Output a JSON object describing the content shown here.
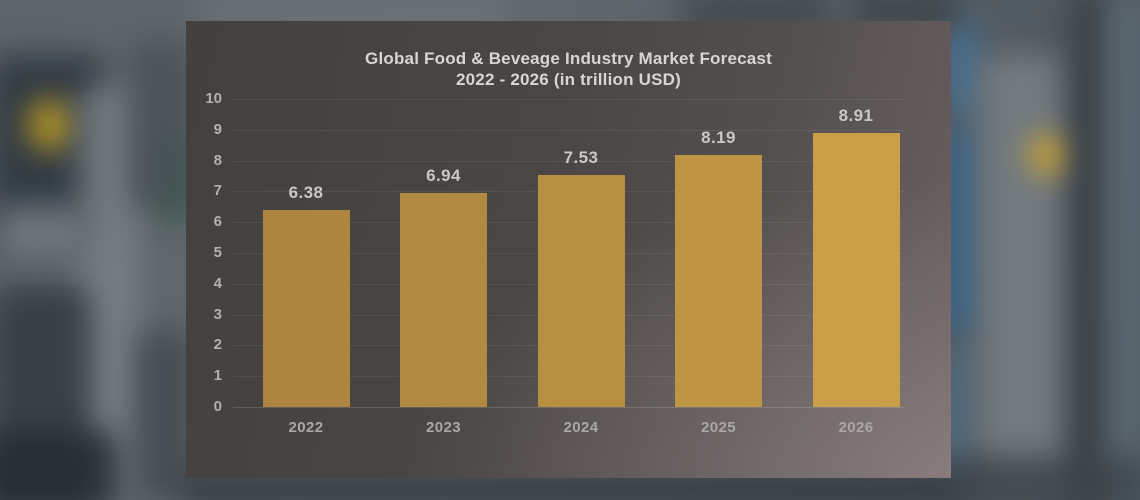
{
  "title_line1": "Global Food & Beveage Industry Market Forecast",
  "title_line2": "2022 - 2026 (in trillion USD)",
  "chart_data": {
    "type": "bar",
    "title": "Global Food & Beveage Industry Market Forecast 2022 - 2026 (in trillion USD)",
    "categories": [
      "2022",
      "2023",
      "2024",
      "2025",
      "2026"
    ],
    "values": [
      6.38,
      6.94,
      7.53,
      8.19,
      8.91
    ],
    "data_labels": [
      "6.38",
      "6.94",
      "7.53",
      "8.19",
      "8.91"
    ],
    "xlabel": "",
    "ylabel": "",
    "ylim": [
      0,
      10
    ],
    "ytick_step": 1,
    "yticks": [
      "0",
      "1",
      "2",
      "3",
      "4",
      "5",
      "6",
      "7",
      "8",
      "9",
      "10"
    ],
    "grid": true,
    "legend": "none"
  },
  "style": {
    "bar_colors": [
      "#ad8540",
      "#b18a42",
      "#b68f43",
      "#bd9545",
      "#c89e47"
    ],
    "accent_bar": "#b58e42",
    "panel_dark": "#4a4645",
    "title_color": "#d8d5d2",
    "label_color": "#cac7c4"
  }
}
